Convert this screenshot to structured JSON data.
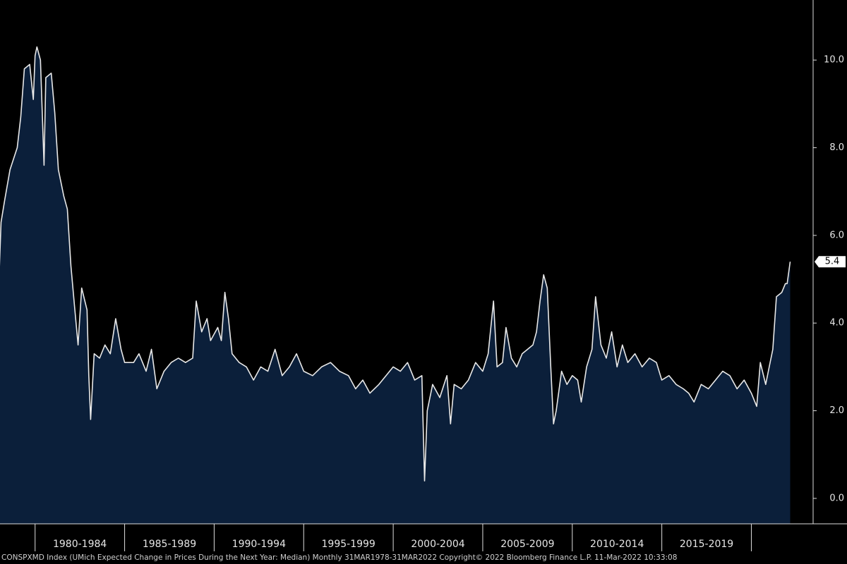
{
  "chart_data": {
    "type": "area",
    "x": [
      1978.0,
      1978.1,
      1978.3,
      1978.6,
      1979.0,
      1979.2,
      1979.4,
      1979.7,
      1979.9,
      1980.0,
      1980.1,
      1980.3,
      1980.5,
      1980.6,
      1980.9,
      1981.1,
      1981.3,
      1981.6,
      1981.8,
      1982.0,
      1982.2,
      1982.4,
      1982.6,
      1982.9,
      1983.0,
      1983.1,
      1983.3,
      1983.6,
      1983.9,
      1984.2,
      1984.5,
      1984.8,
      1985.0,
      1985.5,
      1985.8,
      1986.2,
      1986.5,
      1986.8,
      1987.2,
      1987.6,
      1988.0,
      1988.4,
      1988.8,
      1989.0,
      1989.3,
      1989.6,
      1989.8,
      1990.2,
      1990.4,
      1990.6,
      1990.8,
      1991.0,
      1991.4,
      1991.8,
      1992.2,
      1992.6,
      1993.0,
      1993.4,
      1993.8,
      1994.2,
      1994.6,
      1995.0,
      1995.5,
      1996.0,
      1996.5,
      1997.0,
      1997.5,
      1997.9,
      1998.3,
      1998.7,
      1999.2,
      1999.6,
      2000.0,
      2000.4,
      2000.8,
      2001.2,
      2001.6,
      2001.75,
      2001.9,
      2002.2,
      2002.6,
      2003.0,
      2003.2,
      2003.4,
      2003.8,
      2004.2,
      2004.6,
      2005.0,
      2005.3,
      2005.6,
      2005.8,
      2006.1,
      2006.3,
      2006.6,
      2006.9,
      2007.2,
      2007.5,
      2007.8,
      2008.0,
      2008.2,
      2008.4,
      2008.6,
      2008.8,
      2008.95,
      2009.1,
      2009.4,
      2009.7,
      2010.0,
      2010.3,
      2010.5,
      2010.8,
      2011.1,
      2011.3,
      2011.6,
      2011.9,
      2012.2,
      2012.5,
      2012.8,
      2013.1,
      2013.5,
      2013.9,
      2014.3,
      2014.7,
      2015.0,
      2015.4,
      2015.8,
      2016.2,
      2016.5,
      2016.8,
      2017.2,
      2017.6,
      2018.0,
      2018.4,
      2018.8,
      2019.2,
      2019.6,
      2020.0,
      2020.3,
      2020.5,
      2020.8,
      2021.0,
      2021.2,
      2021.4,
      2021.7,
      2021.9,
      2022.0,
      2022.17
    ],
    "series": [
      {
        "color": "#e8e8e8",
        "fill": "#0b1f3a",
        "values": [
          5.2,
          6.3,
          6.8,
          7.5,
          8.0,
          8.7,
          9.8,
          9.9,
          9.1,
          10.1,
          10.3,
          10.0,
          7.6,
          9.6,
          9.7,
          8.8,
          7.5,
          6.9,
          6.6,
          5.3,
          4.4,
          3.5,
          4.8,
          4.3,
          2.8,
          1.8,
          3.3,
          3.2,
          3.5,
          3.3,
          4.1,
          3.4,
          3.1,
          3.1,
          3.3,
          2.9,
          3.4,
          2.5,
          2.9,
          3.1,
          3.2,
          3.1,
          3.2,
          4.5,
          3.8,
          4.1,
          3.6,
          3.9,
          3.6,
          4.7,
          4.1,
          3.3,
          3.1,
          3.0,
          2.7,
          3.0,
          2.9,
          3.4,
          2.8,
          3.0,
          3.3,
          2.9,
          2.8,
          3.0,
          3.1,
          2.9,
          2.8,
          2.5,
          2.7,
          2.4,
          2.6,
          2.8,
          3.0,
          2.9,
          3.1,
          2.7,
          2.8,
          0.4,
          2.0,
          2.6,
          2.3,
          2.8,
          1.7,
          2.6,
          2.5,
          2.7,
          3.1,
          2.9,
          3.3,
          4.5,
          3.0,
          3.1,
          3.9,
          3.2,
          3.0,
          3.3,
          3.4,
          3.5,
          3.8,
          4.5,
          5.1,
          4.8,
          3.0,
          1.7,
          2.0,
          2.9,
          2.6,
          2.8,
          2.7,
          2.2,
          3.0,
          3.4,
          4.6,
          3.5,
          3.2,
          3.8,
          3.0,
          3.5,
          3.1,
          3.3,
          3.0,
          3.2,
          3.1,
          2.7,
          2.8,
          2.6,
          2.5,
          2.4,
          2.2,
          2.6,
          2.5,
          2.7,
          2.9,
          2.8,
          2.5,
          2.7,
          2.4,
          2.1,
          3.1,
          2.6,
          3.0,
          3.4,
          4.6,
          4.7,
          4.9,
          4.9,
          5.4
        ]
      }
    ],
    "xlim": [
      1978.04,
      2023.45
    ],
    "ylim": [
      -0.58,
      11.37
    ],
    "yticks": [
      {
        "value": 0,
        "label": "0.0"
      },
      {
        "value": 2,
        "label": "2.0"
      },
      {
        "value": 4,
        "label": "4.0"
      },
      {
        "value": 6,
        "label": "6.0"
      },
      {
        "value": 8,
        "label": "8.0"
      },
      {
        "value": 10,
        "label": "10.0"
      }
    ],
    "x_periods": [
      {
        "label": "1980-1984",
        "start": 1980,
        "end": 1985
      },
      {
        "label": "1985-1989",
        "start": 1985,
        "end": 1990
      },
      {
        "label": "1990-1994",
        "start": 1990,
        "end": 1995
      },
      {
        "label": "1995-1999",
        "start": 1995,
        "end": 2000
      },
      {
        "label": "2000-2004",
        "start": 2000,
        "end": 2005
      },
      {
        "label": "2005-2009",
        "start": 2005,
        "end": 2010
      },
      {
        "label": "2010-2014",
        "start": 2010,
        "end": 2015
      },
      {
        "label": "2015-2019",
        "start": 2015,
        "end": 2020
      },
      {
        "label": "",
        "start": 2020,
        "end": 2023.45
      }
    ],
    "footer": "CONSPXMD Index (UMich Expected Change in Prices During the Next Year: Median)  Monthly 31MAR1978-31MAR2022 Copyright© 2022 Bloomberg Finance L.P.  11-Mar-2022 10:33:08"
  }
}
